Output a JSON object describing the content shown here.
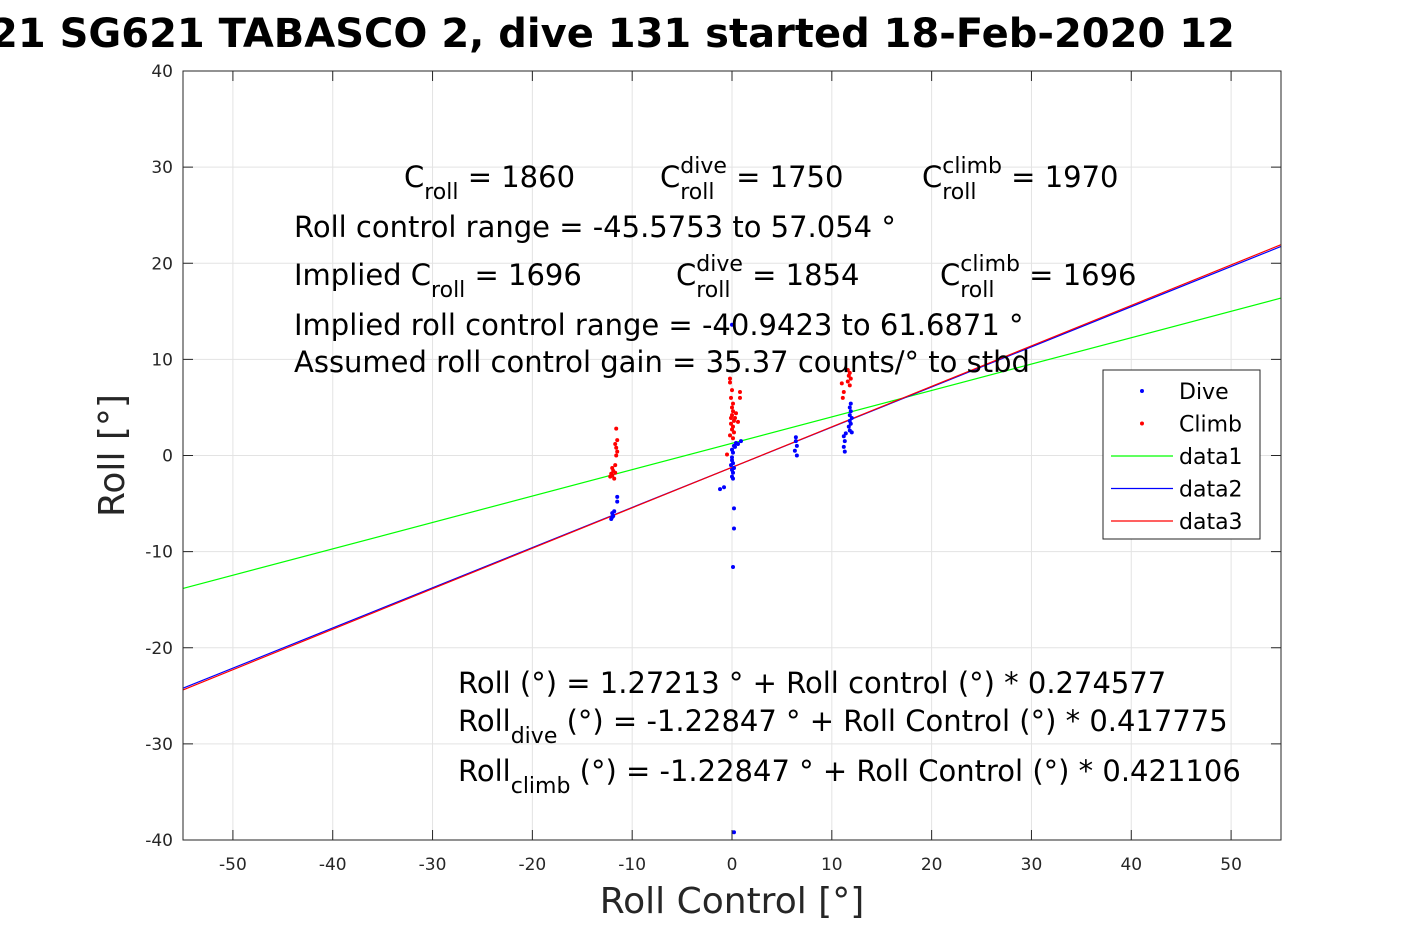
{
  "chart_data": {
    "type": "scatter",
    "title": "21 SG621 TABASCO 2, dive 131 started 18-Feb-2020 12",
    "xlabel": "Roll Control [°]",
    "ylabel": "Roll [°]",
    "xlim": [
      -55,
      55
    ],
    "ylim": [
      -40,
      40
    ],
    "x_ticks": [
      -50,
      -40,
      -30,
      -20,
      -10,
      0,
      10,
      20,
      30,
      40,
      50
    ],
    "y_ticks": [
      -40,
      -30,
      -20,
      -10,
      0,
      10,
      20,
      30,
      40
    ],
    "x_tick_labels": [
      "-50",
      "-40",
      "-30",
      "-20",
      "-10",
      "0",
      "10",
      "20",
      "30",
      "40",
      "50"
    ],
    "y_tick_labels": [
      "-40",
      "-30",
      "-20",
      "-10",
      "0",
      "10",
      "20",
      "30",
      "40"
    ],
    "grid": true,
    "legend_position": "right",
    "legend": [
      "Dive",
      "Climb",
      "data1",
      "data2",
      "data3"
    ],
    "series": [
      {
        "name": "Dive",
        "kind": "points",
        "color": "#0000ff",
        "points": [
          [
            -12.0,
            -6.0
          ],
          [
            -11.9,
            -6.3
          ],
          [
            -12.1,
            -6.6
          ],
          [
            -11.8,
            -5.8
          ],
          [
            -12.0,
            -6.4
          ],
          [
            -11.5,
            -4.3
          ],
          [
            -11.5,
            -4.8
          ],
          [
            0.0,
            -0.2
          ],
          [
            0.0,
            -0.5
          ],
          [
            0.1,
            -0.8
          ],
          [
            -0.1,
            -1.0
          ],
          [
            0.2,
            -1.3
          ],
          [
            0.0,
            -1.5
          ],
          [
            0.1,
            -1.8
          ],
          [
            0.0,
            -2.2
          ],
          [
            0.1,
            0.3
          ],
          [
            0.0,
            0.6
          ],
          [
            0.2,
            1.0
          ],
          [
            0.4,
            1.3
          ],
          [
            0.6,
            1.2
          ],
          [
            0.9,
            1.5
          ],
          [
            0.3,
            0.9
          ],
          [
            0.1,
            -2.4
          ],
          [
            -0.8,
            -3.3
          ],
          [
            -1.2,
            -3.5
          ],
          [
            0.2,
            -5.5
          ],
          [
            0.2,
            -7.6
          ],
          [
            0.1,
            -11.6
          ],
          [
            0.0,
            13.6
          ],
          [
            0.2,
            -39.2
          ],
          [
            6.4,
            1.9
          ],
          [
            6.4,
            1.5
          ],
          [
            6.5,
            1.0
          ],
          [
            6.3,
            0.5
          ],
          [
            6.5,
            0.0
          ],
          [
            11.2,
            2.0
          ],
          [
            11.4,
            2.3
          ],
          [
            11.3,
            1.5
          ],
          [
            11.2,
            0.9
          ],
          [
            11.3,
            0.4
          ],
          [
            11.8,
            2.6
          ],
          [
            11.7,
            3.0
          ],
          [
            11.9,
            3.3
          ],
          [
            11.8,
            3.6
          ],
          [
            12.0,
            3.9
          ],
          [
            11.8,
            4.2
          ],
          [
            11.9,
            4.6
          ],
          [
            11.8,
            5.0
          ],
          [
            11.9,
            5.4
          ],
          [
            12.0,
            2.4
          ]
        ]
      },
      {
        "name": "Climb",
        "kind": "points",
        "color": "#ff0000",
        "points": [
          [
            -11.6,
            2.8
          ],
          [
            -11.5,
            1.6
          ],
          [
            -11.7,
            1.2
          ],
          [
            -11.6,
            0.8
          ],
          [
            -11.5,
            0.4
          ],
          [
            -11.6,
            0.0
          ],
          [
            -11.7,
            -1.0
          ],
          [
            -12.0,
            -1.3
          ],
          [
            -11.9,
            -1.6
          ],
          [
            -12.1,
            -1.9
          ],
          [
            -12.0,
            -2.1
          ],
          [
            -11.8,
            -2.4
          ],
          [
            -12.2,
            -2.2
          ],
          [
            -11.7,
            -1.8
          ],
          [
            -0.2,
            8.0
          ],
          [
            -0.2,
            7.6
          ],
          [
            0.0,
            6.8
          ],
          [
            -0.1,
            6.0
          ],
          [
            0.1,
            5.4
          ],
          [
            0.0,
            5.0
          ],
          [
            0.1,
            4.6
          ],
          [
            0.0,
            4.2
          ],
          [
            -0.1,
            3.9
          ],
          [
            0.2,
            3.6
          ],
          [
            -0.1,
            3.3
          ],
          [
            0.1,
            3.0
          ],
          [
            0.0,
            2.7
          ],
          [
            0.2,
            2.4
          ],
          [
            -0.2,
            2.1
          ],
          [
            0.1,
            1.8
          ],
          [
            0.4,
            4.4
          ],
          [
            0.6,
            3.5
          ],
          [
            0.8,
            6.0
          ],
          [
            0.8,
            6.6
          ],
          [
            0.3,
            3.9
          ],
          [
            -0.5,
            0.1
          ],
          [
            11.6,
            8.9
          ],
          [
            11.8,
            8.6
          ],
          [
            11.7,
            8.3
          ],
          [
            11.9,
            8.0
          ],
          [
            11.6,
            7.7
          ],
          [
            11.8,
            7.3
          ],
          [
            11.0,
            7.5
          ],
          [
            11.2,
            6.6
          ],
          [
            11.1,
            6.0
          ]
        ]
      },
      {
        "name": "data1",
        "kind": "line",
        "color": "#00ff00",
        "intercept": 1.27213,
        "slope": 0.274577
      },
      {
        "name": "data2",
        "kind": "line",
        "color": "#0000ff",
        "intercept": -1.22847,
        "slope": 0.417775
      },
      {
        "name": "data3",
        "kind": "line",
        "color": "#ff0000",
        "intercept": -1.22847,
        "slope": 0.421106
      }
    ],
    "annotations_top": {
      "line1": [
        {
          "base": "C",
          "sub": "roll",
          "sup": "",
          "tail": " = 1860"
        },
        {
          "base": "C",
          "sub": "roll",
          "sup": "dive",
          "tail": " = 1750"
        },
        {
          "base": "C",
          "sub": "roll",
          "sup": "climb",
          "tail": " = 1970"
        }
      ],
      "line2": "Roll control range = -45.5753 to 57.054 °",
      "line3": [
        {
          "base": "Implied C",
          "sub": "roll",
          "sup": "",
          "tail": " = 1696"
        },
        {
          "base": "C",
          "sub": "roll",
          "sup": "dive",
          "tail": " = 1854"
        },
        {
          "base": "C",
          "sub": "roll",
          "sup": "climb",
          "tail": " = 1696"
        }
      ],
      "line4": "Implied roll control range = -40.9423 to 61.6871 °",
      "line5": "Assumed roll control gain = 35.37 counts/° to stbd"
    },
    "annotations_bottom": {
      "line1": "Roll (°) = 1.27213 ° + Roll control (°) * 0.274577",
      "line2": {
        "base": "Roll",
        "sub": "dive",
        "tail": " (°) = -1.22847 ° + Roll Control (°) * 0.417775"
      },
      "line3": {
        "base": "Roll",
        "sub": "climb",
        "tail": " (°) = -1.22847 ° + Roll Control (°) * 0.421106"
      }
    }
  }
}
